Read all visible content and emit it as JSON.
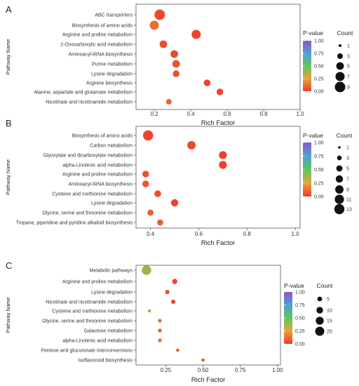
{
  "chart_data": [
    {
      "type": "scatter",
      "panel_label": "A",
      "ylabel": "Pathway Name",
      "xlabel": "Rich Factor",
      "xlim": [
        0.1,
        1.0
      ],
      "xticks": [
        "0.2",
        "0.4",
        "0.6",
        "0.8",
        "1.0"
      ],
      "xtick_values": [
        0.2,
        0.4,
        0.6,
        0.8,
        1.0
      ],
      "grid": false,
      "color_legend": {
        "title": "P-value",
        "ticks": [
          "1.00",
          "0.75",
          "0.50",
          "0.25",
          "0.00"
        ],
        "tick_values": [
          1.0,
          0.75,
          0.5,
          0.25,
          0.0
        ]
      },
      "size_legend": {
        "title": "Count",
        "labels": [
          "1",
          "3",
          "5",
          "7",
          "9"
        ],
        "values": [
          1,
          3,
          5,
          7,
          9
        ]
      },
      "categories": [
        "ABC transporters",
        "Biosynthesis of amino acids",
        "Arginine and proline metabolism",
        "2-Oxocarboxylic acid metabolism",
        "Aminoacyl-tRNA biosynthesis",
        "Purine metabolism",
        "Lysine degradation",
        "Arginine biosynthesis",
        "Alanine, aspartate and glutamate metabolism",
        "Nicotinate and nicotinamide metabolism"
      ],
      "x": [
        0.23,
        0.2,
        0.43,
        0.25,
        0.31,
        0.32,
        0.32,
        0.49,
        0.56,
        0.28
      ],
      "count": [
        9,
        7,
        7,
        5,
        5,
        5,
        4,
        4,
        4,
        3
      ],
      "pvalue": [
        0.03,
        0.12,
        0.02,
        0.04,
        0.03,
        0.06,
        0.04,
        0.02,
        0.02,
        0.1
      ]
    },
    {
      "type": "scatter",
      "panel_label": "B",
      "ylabel": "Pathway Name",
      "xlabel": "Rich Factor",
      "xlim": [
        0.34,
        1.02
      ],
      "xticks": [
        "0.4",
        "0.6",
        "0.8",
        "1.0"
      ],
      "xtick_values": [
        0.4,
        0.6,
        0.8,
        1.0
      ],
      "grid": false,
      "color_legend": {
        "title": "P-value",
        "ticks": [
          "1.00",
          "0.75",
          "0.50",
          "0.25",
          "0.00"
        ],
        "tick_values": [
          1.0,
          0.75,
          0.5,
          0.25,
          0.0
        ]
      },
      "size_legend": {
        "title": "Count",
        "labels": [
          "1",
          "3",
          "5",
          "7",
          "9",
          "11",
          "13"
        ],
        "values": [
          1,
          3,
          5,
          7,
          9,
          11,
          13
        ]
      },
      "categories": [
        "Biosynthesis of amino acids",
        "Carbon metabolism",
        "Glyoxylate and dicarboxylate metabolism",
        "alpha-Linolenic acid metabolism",
        "Arginine and proline metabolism",
        "Aminoacyl-tRNA biosynthesis",
        "Cysteine and methionine metabolism",
        "Lysine degradation",
        "Glycine, serine and threonine metabolism",
        "Tropane, piperidine and pyridine alkaloid biosynthesis"
      ],
      "x": [
        0.39,
        0.57,
        0.7,
        0.7,
        0.38,
        0.38,
        0.43,
        0.5,
        0.4,
        0.44
      ],
      "count": [
        13,
        9,
        8,
        8,
        6,
        6,
        6,
        7,
        5,
        5
      ],
      "pvalue": [
        0.02,
        0.03,
        0.01,
        0.01,
        0.05,
        0.06,
        0.04,
        0.02,
        0.09,
        0.08
      ]
    },
    {
      "type": "scatter",
      "panel_label": "C",
      "ylabel": "Pathway Name",
      "xlabel": "Rich Factor",
      "xlim": [
        0.05,
        1.02
      ],
      "xticks": [
        "0.25",
        "0.50",
        "0.75",
        "1.00"
      ],
      "xtick_values": [
        0.25,
        0.5,
        0.75,
        1.0
      ],
      "grid": false,
      "color_legend": {
        "title": "P-value",
        "ticks": [
          "1.00",
          "0.75",
          "0.50",
          "0.25",
          "0.00"
        ],
        "tick_values": [
          1.0,
          0.75,
          0.5,
          0.25,
          0.0
        ]
      },
      "size_legend": {
        "title": "Count",
        "labels": [
          "5",
          "10",
          "15",
          "20"
        ],
        "values": [
          5,
          10,
          15,
          20
        ]
      },
      "categories": [
        "Metabolic pathways",
        "Arginine and proline metabolism",
        "Lysine degradation",
        "Nicotinate and nicotinamide metabolism",
        "Cysteine and methionine metabolism",
        "Glycine, serine and threonine metabolism",
        "Galactose metabolism",
        "alpha-Linolenic acid metabolism",
        "Pentose and glucuronate interconversions",
        "Isoflavonoid biosynthesis"
      ],
      "x": [
        0.12,
        0.31,
        0.26,
        0.3,
        0.14,
        0.21,
        0.21,
        0.21,
        0.33,
        0.5
      ],
      "count": [
        22,
        6,
        4,
        4,
        2,
        3,
        3,
        3,
        2,
        2
      ],
      "pvalue": [
        0.38,
        0.03,
        0.05,
        0.04,
        0.4,
        0.12,
        0.1,
        0.12,
        0.06,
        0.05
      ]
    }
  ]
}
